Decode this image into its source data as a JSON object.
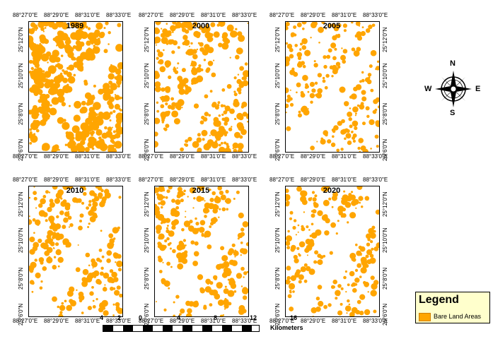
{
  "map": {
    "fill_color": "#ffa500",
    "panels": [
      {
        "year": "1989",
        "density": 0.6
      },
      {
        "year": "2000",
        "density": 0.42
      },
      {
        "year": "2005",
        "density": 0.3
      },
      {
        "year": "2010",
        "density": 0.36
      },
      {
        "year": "2015",
        "density": 0.38
      },
      {
        "year": "2020",
        "density": 0.34
      }
    ],
    "longitude_ticks": [
      "88°27'0\"E",
      "88°29'0\"E",
      "88°31'0\"E",
      "88°33'0\"E"
    ],
    "latitude_ticks": [
      "25°12'0\"N",
      "25°10'0\"N",
      "25°8'0\"N",
      "25°6'0\"N"
    ]
  },
  "north_arrow": {
    "n": "N",
    "s": "S",
    "e": "E",
    "w": "W"
  },
  "legend": {
    "title": "Legend",
    "item_label": "Bare Land Areas",
    "item_color": "#ffa500"
  },
  "scale_bar": {
    "labels": [
      "4",
      "2",
      "0",
      "4",
      "8",
      "12",
      "16"
    ],
    "unit": "Kilometers"
  }
}
